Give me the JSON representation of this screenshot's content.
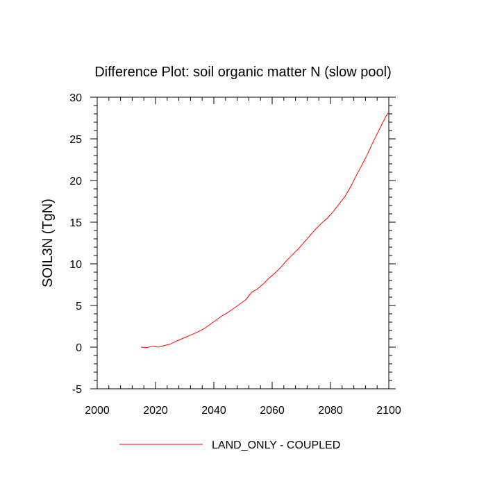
{
  "chart_data": {
    "type": "line",
    "title": "Difference Plot: soil organic matter N (slow pool)",
    "xlabel": "",
    "ylabel": "SOIL3N  (TgN)",
    "xlim": [
      2000,
      2100
    ],
    "ylim": [
      -5,
      30
    ],
    "x_ticks": [
      2000,
      2020,
      2040,
      2060,
      2080,
      2100
    ],
    "y_ticks": [
      -5,
      0,
      5,
      10,
      15,
      20,
      25,
      30
    ],
    "grid": false,
    "legend": "bottom",
    "series": [
      {
        "name": "LAND_ONLY - COUPLED",
        "color": "#ff0000",
        "x": [
          2015,
          2017,
          2019,
          2021,
          2023,
          2025,
          2027,
          2029,
          2031,
          2033,
          2035,
          2037,
          2039,
          2041,
          2043,
          2045,
          2047,
          2049,
          2051,
          2053,
          2055,
          2057,
          2059,
          2061,
          2063,
          2065,
          2067,
          2069,
          2071,
          2073,
          2075,
          2077,
          2079,
          2081,
          2083,
          2085,
          2087,
          2089,
          2091,
          2093,
          2095,
          2097,
          2099,
          2100
        ],
        "values": [
          0.0,
          -0.05,
          0.1,
          0.0,
          0.2,
          0.35,
          0.7,
          1.0,
          1.3,
          1.6,
          1.9,
          2.3,
          2.8,
          3.3,
          3.8,
          4.2,
          4.7,
          5.2,
          5.7,
          6.6,
          7.0,
          7.6,
          8.3,
          8.9,
          9.6,
          10.4,
          11.1,
          11.8,
          12.6,
          13.4,
          14.2,
          14.9,
          15.5,
          16.3,
          17.2,
          18.1,
          19.3,
          20.7,
          22.0,
          23.4,
          24.9,
          26.3,
          27.7,
          28.2
        ]
      }
    ]
  }
}
